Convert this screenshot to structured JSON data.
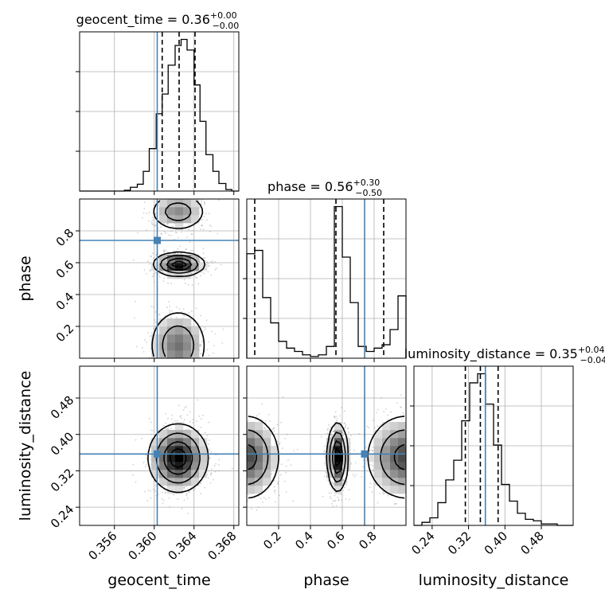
{
  "chart_data": {
    "type": "corner",
    "parameters": [
      {
        "name": "geocent_time",
        "label": "geocent_time",
        "median": "0.36",
        "plus": "+0.00",
        "minus": "−0.00",
        "range": [
          0.3525,
          0.3685
        ],
        "ticks": [
          0.356,
          0.36,
          0.364,
          0.368
        ],
        "tick_labels": [
          "0.356",
          "0.360",
          "0.364",
          "0.368"
        ],
        "injection": 0.3603,
        "quantiles": [
          0.3608,
          0.3625,
          0.3641
        ],
        "hist": {
          "edges": [
            0.3525,
            0.3531,
            0.3538,
            0.3544,
            0.3551,
            0.3557,
            0.3563,
            0.357,
            0.3576,
            0.3583,
            0.3589,
            0.3595,
            0.3602,
            0.3608,
            0.3614,
            0.3621,
            0.3627,
            0.3633,
            0.364,
            0.3646,
            0.3652,
            0.3659,
            0.3665,
            0.3672,
            0.3678,
            0.3685
          ],
          "counts": [
            0,
            0,
            0,
            0,
            0,
            0,
            0,
            0.005,
            0.025,
            0.045,
            0.13,
            0.28,
            0.51,
            0.64,
            0.83,
            0.96,
            1.0,
            0.93,
            0.7,
            0.46,
            0.24,
            0.13,
            0.05,
            0.01,
            0
          ]
        }
      },
      {
        "name": "phase",
        "label": "phase",
        "median": "0.56",
        "plus": "+0.30",
        "minus": "−0.50",
        "range": [
          0.0,
          1.0
        ],
        "ticks": [
          0.2,
          0.4,
          0.6,
          0.8
        ],
        "tick_labels": [
          "0.2",
          "0.4",
          "0.6",
          "0.8"
        ],
        "injection": 0.74,
        "quantiles": [
          0.05,
          0.56,
          0.86
        ],
        "hist": {
          "edges": [
            0.0,
            0.05,
            0.1,
            0.15,
            0.2,
            0.25,
            0.3,
            0.35,
            0.4,
            0.45,
            0.5,
            0.55,
            0.6,
            0.65,
            0.7,
            0.75,
            0.8,
            0.85,
            0.9,
            0.95,
            1.0
          ],
          "counts": [
            0.62,
            0.64,
            0.36,
            0.21,
            0.1,
            0.06,
            0.04,
            0.02,
            0.01,
            0.02,
            0.07,
            0.9,
            0.6,
            0.33,
            0.07,
            0.04,
            0.06,
            0.08,
            0.17,
            0.37
          ]
        }
      },
      {
        "name": "luminosity_distance",
        "label": "luminosity_distance",
        "median": "0.35",
        "plus": "+0.04",
        "minus": "−0.04",
        "range": [
          0.2,
          0.55
        ],
        "ticks": [
          0.24,
          0.32,
          0.4,
          0.48
        ],
        "tick_labels": [
          "0.24",
          "0.32",
          "0.40",
          "0.48"
        ],
        "injection": 0.357,
        "quantiles": [
          0.313,
          0.346,
          0.385
        ],
        "hist": {
          "edges": [
            0.2,
            0.2175,
            0.235,
            0.2525,
            0.27,
            0.2875,
            0.305,
            0.3225,
            0.34,
            0.3575,
            0.375,
            0.3925,
            0.41,
            0.4275,
            0.445,
            0.4625,
            0.48,
            0.4975,
            0.515,
            0.5325,
            0.55
          ],
          "counts": [
            0.0,
            0.02,
            0.05,
            0.15,
            0.3,
            0.43,
            0.69,
            0.94,
            1.0,
            0.8,
            0.53,
            0.27,
            0.16,
            0.08,
            0.04,
            0.03,
            0.01,
            0.01,
            0.0,
            0.0
          ]
        }
      }
    ],
    "pairs": [
      {
        "x": "geocent_time",
        "y": "phase",
        "modes": [
          {
            "cx": 0.3625,
            "cy": 0.59,
            "sx": 0.0012,
            "sy": 0.035,
            "w": 1.0
          },
          {
            "cx": 0.3624,
            "cy": 0.08,
            "sx": 0.0014,
            "sy": 0.11,
            "w": 0.55
          },
          {
            "cx": 0.3624,
            "cy": 0.92,
            "sx": 0.0014,
            "sy": 0.06,
            "w": 0.45
          }
        ]
      },
      {
        "x": "geocent_time",
        "y": "luminosity_distance",
        "modes": [
          {
            "cx": 0.3624,
            "cy": 0.348,
            "sx": 0.0014,
            "sy": 0.035,
            "w": 1.0
          }
        ]
      },
      {
        "x": "phase",
        "y": "luminosity_distance",
        "modes": [
          {
            "cx": 0.57,
            "cy": 0.35,
            "sx": 0.03,
            "sy": 0.035,
            "w": 1.0
          },
          {
            "cx": 0.0,
            "cy": 0.35,
            "sx": 0.1,
            "sy": 0.045,
            "w": 0.7
          },
          {
            "cx": 1.0,
            "cy": 0.35,
            "sx": 0.12,
            "sy": 0.045,
            "w": 0.7
          }
        ]
      }
    ],
    "injection_color": "#4682b4",
    "hist_color": "#000000",
    "grid": true
  }
}
